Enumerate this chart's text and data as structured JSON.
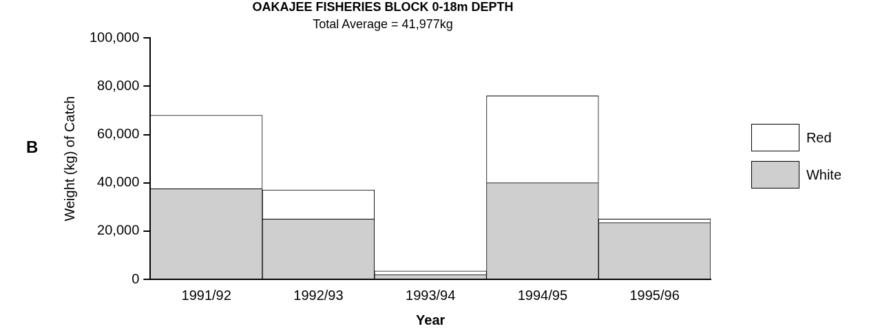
{
  "chart_data": {
    "type": "bar",
    "title": "OAKAJEE FISHERIES BLOCK 0-18m DEPTH",
    "subtitle": "Total Average = 41,977kg",
    "xlabel": "Year",
    "ylabel": "Weight (kg) of Catch",
    "annotations": [
      "B"
    ],
    "categories": [
      "1991/92",
      "1992/93",
      "1993/94",
      "1994/95",
      "1995/96"
    ],
    "stacked": true,
    "series": [
      {
        "name": "White",
        "color": "#cfcfcf",
        "values": [
          37500,
          25000,
          2000,
          40000,
          23500
        ]
      },
      {
        "name": "Red",
        "color": "#ffffff",
        "values": [
          30500,
          12000,
          1500,
          36000,
          1500
        ]
      }
    ],
    "ylim": [
      0,
      100000
    ],
    "yticks": [
      {
        "value": 0,
        "label": "0"
      },
      {
        "value": 20000,
        "label": "20,000"
      },
      {
        "value": 40000,
        "label": "40,000"
      },
      {
        "value": 60000,
        "label": "60,000"
      },
      {
        "value": 80000,
        "label": "80,000"
      },
      {
        "value": 100000,
        "label": "100,000"
      }
    ],
    "grid": false,
    "legend": "right"
  }
}
